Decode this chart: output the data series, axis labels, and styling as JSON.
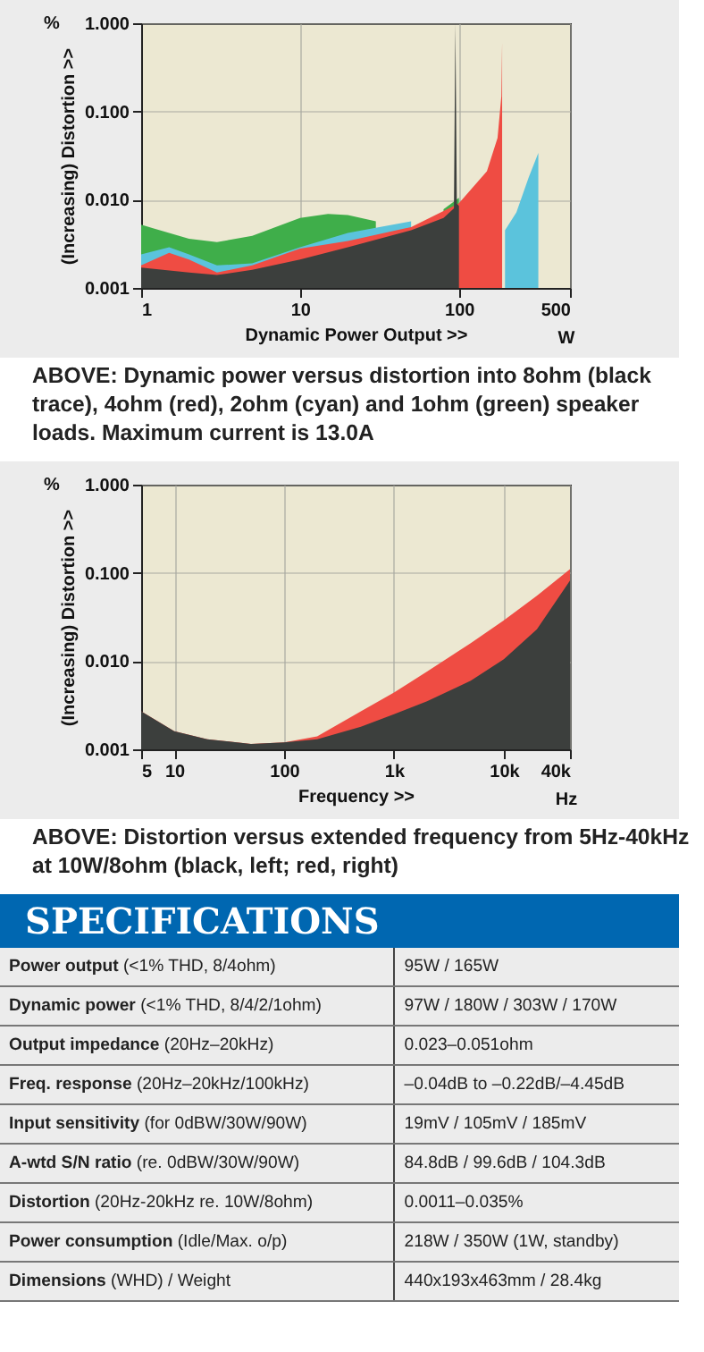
{
  "chart_data": [
    {
      "type": "area",
      "xlabel": "Dynamic Power Output >>",
      "ylabel": "(Increasing) Distortion >>",
      "log": "xy",
      "grid": true,
      "xlim": [
        1,
        500
      ],
      "xticks": [
        1,
        10,
        100,
        500
      ],
      "ylim": [
        0.001,
        1
      ],
      "yticks": [
        {
          "value": 0.001,
          "label": "0.001"
        },
        {
          "value": 0.01,
          "label": "0.010"
        },
        {
          "value": 0.1,
          "label": "0.100"
        },
        {
          "value": 1,
          "label": "1.000"
        }
      ],
      "annotations": [
        "%",
        "W",
        "ABOVE: Dynamic power versus distortion into 8ohm (black trace), 4ohm (red), 2ohm (cyan) and 1ohm (green) speaker loads. Maximum current is 13.0A"
      ],
      "series": [
        {
          "color": "#3fae4a",
          "x": [
            1,
            2,
            3,
            5,
            10,
            15,
            20,
            30,
            50,
            80,
            100
          ],
          "values": [
            0.0052,
            0.0036,
            0.0033,
            0.0039,
            0.0062,
            0.0069,
            0.0067,
            0.0057,
            null,
            0.0078,
            0.0105
          ]
        },
        {
          "color": "#5bc3dc",
          "x": [
            1,
            1.5,
            2,
            3,
            5,
            10,
            20,
            50,
            100,
            190,
            195,
            230,
            275,
            316
          ],
          "values": [
            0.0024,
            0.0029,
            0.0024,
            0.0018,
            0.0019,
            0.0029,
            0.0042,
            0.0057,
            null,
            null,
            0.0045,
            0.0072,
            0.018,
            0.034
          ]
        },
        {
          "color": "#ef4c43",
          "x": [
            1,
            1.5,
            2,
            3,
            5,
            10,
            20,
            50,
            100,
            150,
            175,
            185,
            187
          ],
          "values": [
            0.0018,
            0.0025,
            0.0021,
            0.0015,
            0.0018,
            0.0028,
            0.0034,
            0.0049,
            0.0091,
            0.021,
            0.05,
            0.15,
            0.6
          ]
        },
        {
          "color": "#3c3f3d",
          "x": [
            1,
            2,
            3,
            5,
            10,
            20,
            50,
            80,
            93,
            95,
            97,
            100
          ],
          "values": [
            0.0017,
            0.0015,
            0.0014,
            0.0016,
            0.0021,
            0.0029,
            0.0045,
            0.0062,
            0.008,
            1.0,
            0.009,
            0.0085
          ]
        }
      ]
    },
    {
      "type": "area",
      "xlabel": "Frequency >>",
      "ylabel": "(Increasing) Distortion >>",
      "log": "xy",
      "grid": true,
      "xlim": [
        5,
        40000
      ],
      "xticks": [
        5,
        10,
        100,
        {
          "value": 1000,
          "label": "1k"
        },
        {
          "value": 10000,
          "label": "10k"
        },
        {
          "value": 40000,
          "label": "40k"
        }
      ],
      "ylim": [
        0.001,
        1
      ],
      "yticks": [
        {
          "value": 0.001,
          "label": "0.001"
        },
        {
          "value": 0.01,
          "label": "0.010"
        },
        {
          "value": 0.1,
          "label": "0.100"
        },
        {
          "value": 1,
          "label": "1.000"
        }
      ],
      "annotations": [
        "%",
        "Hz",
        "ABOVE: Distortion versus extended frequency from 5Hz-40kHz at 10W/8ohm (black, left; red, right)"
      ],
      "x": [
        5,
        10,
        20,
        50,
        100,
        200,
        500,
        1000,
        2000,
        5000,
        10000,
        20000,
        40000
      ],
      "series": [
        {
          "color": "#ef4c43",
          "values": [
            0.0027,
            0.0016,
            0.0013,
            0.00115,
            0.0012,
            0.0014,
            0.0027,
            0.0044,
            0.0076,
            0.016,
            0.029,
            0.055,
            0.11
          ]
        },
        {
          "color": "#3c3f3d",
          "values": [
            0.0027,
            0.0016,
            0.0013,
            0.00115,
            0.0012,
            0.0013,
            0.0018,
            0.0025,
            0.0035,
            0.006,
            0.0105,
            0.023,
            0.082
          ]
        }
      ]
    },
    {
      "type": "other",
      "title": "SPECIFICATIONS",
      "annotations": [
        "Power output (<1% THD, 8/4ohm)",
        "95W / 165W",
        "Dynamic power (<1% THD, 8/4/2/1ohm)",
        "97W / 180W / 303W / 170W",
        "Output impedance (20Hz–20kHz)",
        "0.023–0.051ohm",
        "Freq. response (20Hz–20kHz/100kHz)",
        "–0.04dB to –0.22dB/–4.45dB",
        "Input sensitivity (for 0dBW/30W/90W)",
        "19mV / 105mV / 185mV",
        "A-wtd S/N ratio (re. 0dBW/30W/90W)",
        "84.8dB / 99.6dB / 104.3dB",
        "Distortion (20Hz-20kHz re. 10W/8ohm)",
        "0.0011–0.035%",
        "Power consumption (Idle/Max. o/p)",
        "218W / 350W (1W, standby)",
        "Dimensions (WHD) / Weight",
        "440x193x463mm / 28.4kg"
      ]
    }
  ]
}
